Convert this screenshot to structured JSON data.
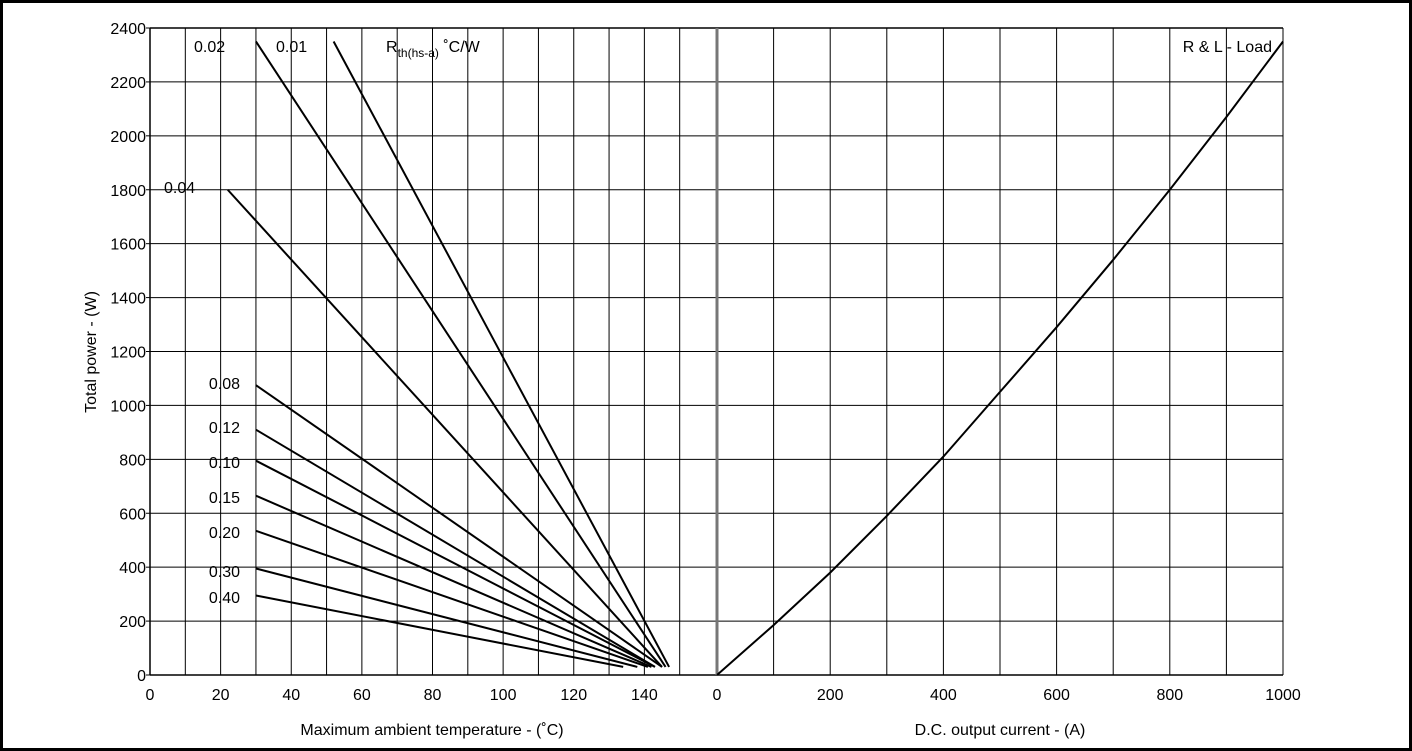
{
  "chart_data": [
    {
      "type": "line",
      "panel": "left",
      "xlabel": "Maximum ambient temperature - (˚C)",
      "ylabel": "Total power - (W)",
      "xlim": [
        0,
        160
      ],
      "ylim": [
        0,
        2400
      ],
      "xticks": [
        "0",
        "20",
        "40",
        "60",
        "80",
        "100",
        "120",
        "140"
      ],
      "yticks": [
        "0",
        "200",
        "400",
        "600",
        "800",
        "1000",
        "1200",
        "1400",
        "1600",
        "1800",
        "2000",
        "2200",
        "2400"
      ],
      "grid": true,
      "header_label": {
        "main": "R",
        "sub": "th(hs-a)",
        "unit": " ˚C/W"
      },
      "series": [
        {
          "name": "0.01",
          "points": [
            [
              52,
              2350
            ],
            [
              147,
              30
            ]
          ]
        },
        {
          "name": "0.02",
          "points": [
            [
              30,
              2350
            ],
            [
              146,
              30
            ]
          ]
        },
        {
          "name": "0.04",
          "points": [
            [
              22,
              1800
            ],
            [
              145,
              30
            ]
          ]
        },
        {
          "name": "0.08",
          "points": [
            [
              30,
              1075
            ],
            [
              145,
              30
            ]
          ]
        },
        {
          "name": "0.12",
          "points": [
            [
              30,
              910
            ],
            [
              143,
              30
            ]
          ]
        },
        {
          "name": "0.10",
          "points": [
            [
              30,
              795
            ],
            [
              143,
              30
            ]
          ]
        },
        {
          "name": "0.15",
          "points": [
            [
              30,
              665
            ],
            [
              142,
              30
            ]
          ]
        },
        {
          "name": "0.20",
          "points": [
            [
              30,
              535
            ],
            [
              141,
              30
            ]
          ]
        },
        {
          "name": "0.30",
          "points": [
            [
              30,
              395
            ],
            [
              138,
              30
            ]
          ]
        },
        {
          "name": "0.40",
          "points": [
            [
              30,
              295
            ],
            [
              134,
              30
            ]
          ]
        }
      ]
    },
    {
      "type": "line",
      "panel": "right",
      "xlabel": "D.C. output current - (A)",
      "ylabel": "",
      "xlim": [
        0,
        1000
      ],
      "ylim": [
        0,
        2400
      ],
      "xticks": [
        "0",
        "200",
        "400",
        "600",
        "800",
        "1000"
      ],
      "grid": true,
      "series": [
        {
          "name": "R & L - Load",
          "x": [
            0,
            100,
            200,
            300,
            400,
            500,
            600,
            700,
            800,
            900,
            1000
          ],
          "y": [
            0,
            185,
            380,
            590,
            810,
            1050,
            1290,
            1540,
            1800,
            2070,
            2350
          ]
        }
      ]
    }
  ]
}
